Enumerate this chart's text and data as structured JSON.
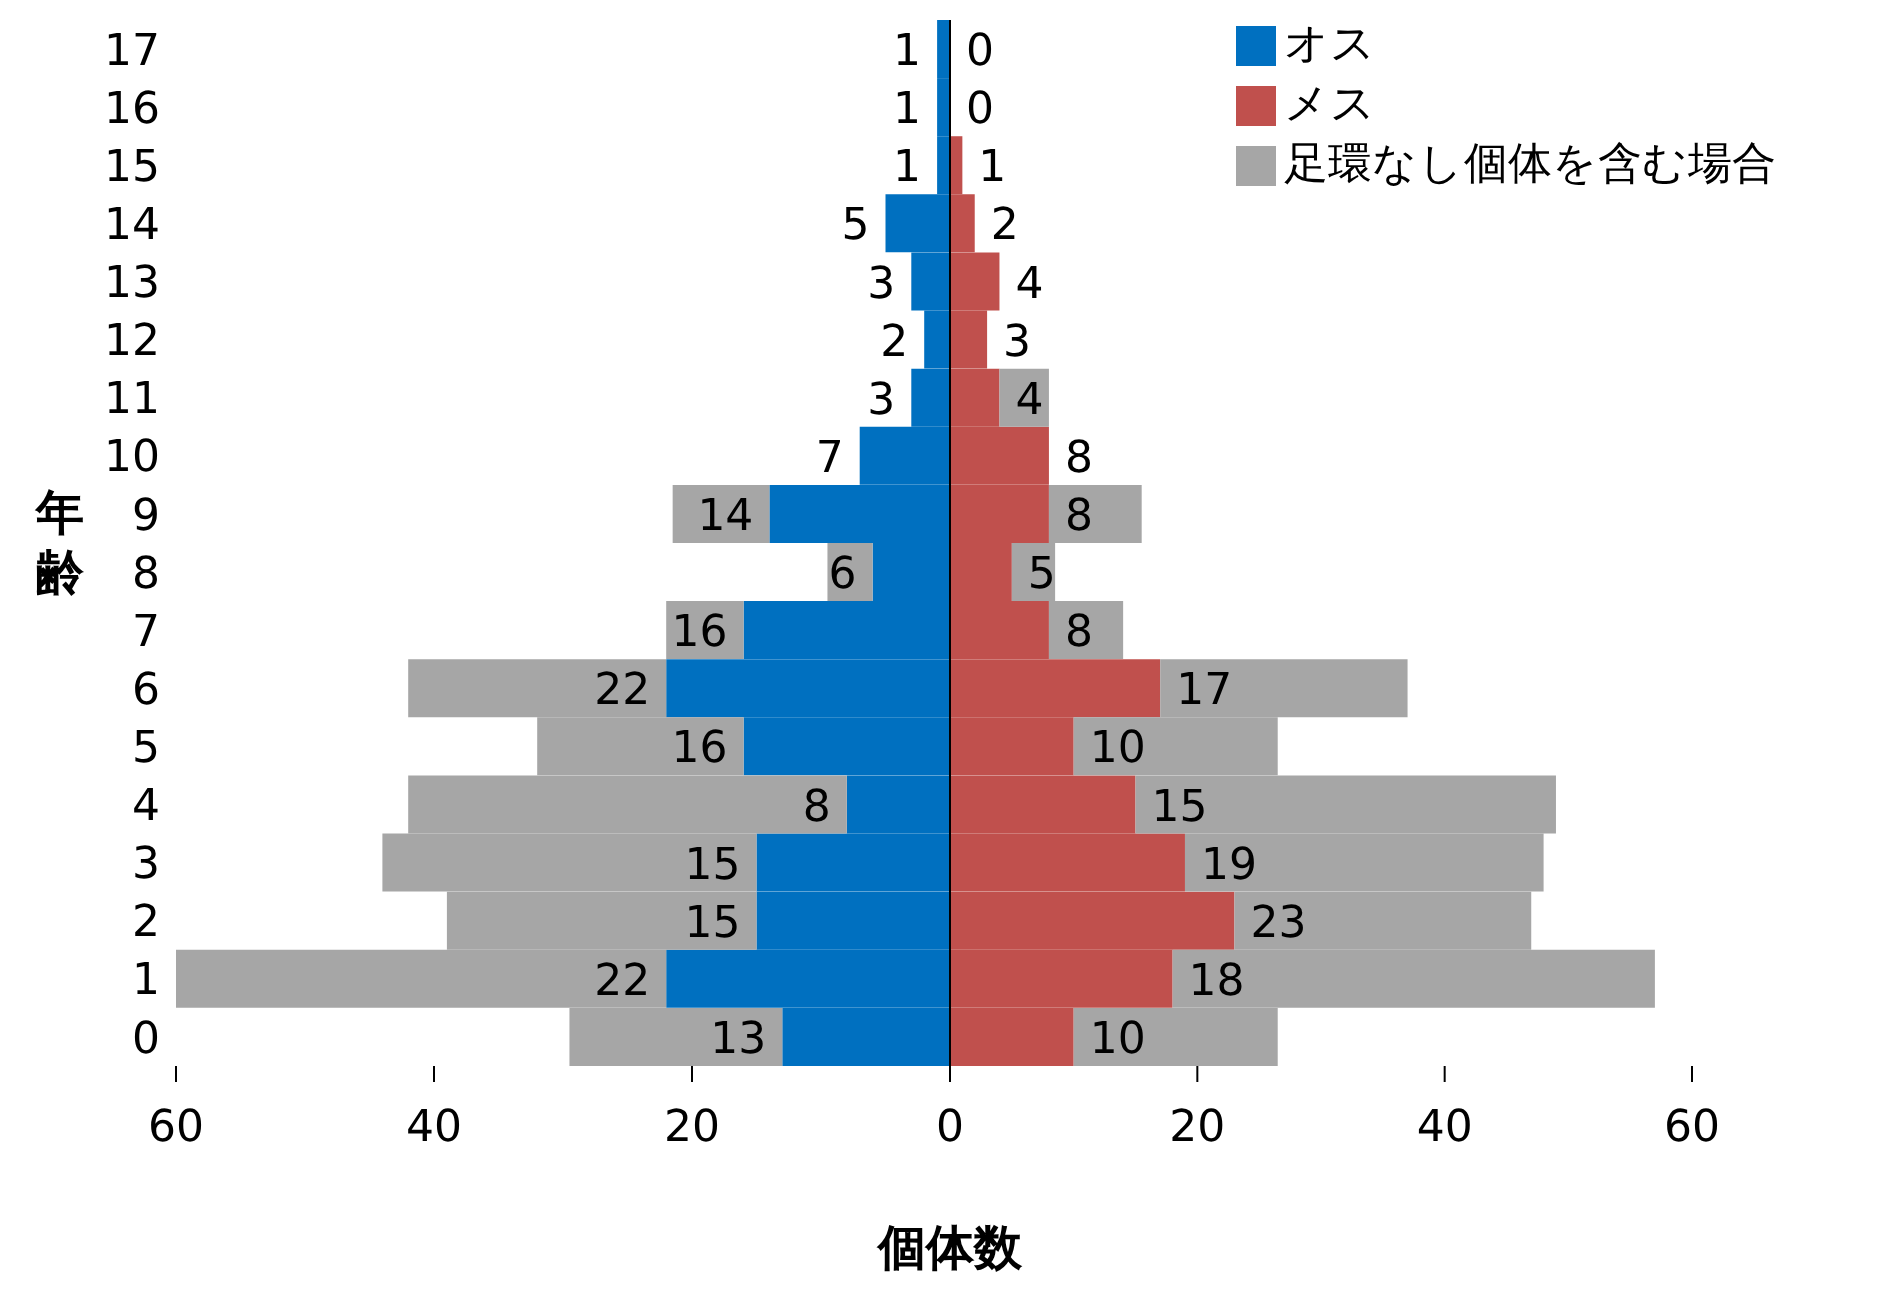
{
  "chart_data": [
    {
      "type": "bar",
      "orientation": "horizontal",
      "stacked": true,
      "ylabel": "年齢",
      "legend": "top right",
      "categories": [
        "17",
        "16",
        "15",
        "14",
        "13",
        "12",
        "11",
        "10",
        "9",
        "8",
        "7",
        "6",
        "5",
        "4",
        "3",
        "2",
        "1",
        "0"
      ],
      "series": [
        {
          "name": "オス",
          "color": "#0070c0",
          "values": [
            1,
            1,
            1,
            5,
            3,
            2,
            3,
            7,
            14,
            6,
            16,
            22,
            16,
            8,
            15,
            15,
            22,
            13
          ],
          "value_labels": [
            "1",
            "1",
            "1",
            "5",
            "3",
            "2",
            "3",
            "7",
            "14",
            "6",
            "16",
            "22",
            "16",
            "8",
            "15",
            "15",
            "22",
            "13"
          ]
        },
        {
          "color": "#a6a6a6",
          "values": [
            0,
            0,
            0,
            0,
            0,
            0,
            0,
            0,
            7.5,
            3.5,
            6,
            20,
            16,
            34,
            29,
            24,
            38,
            16.5
          ]
        }
      ],
      "xlim": [
        60,
        0
      ],
      "xticks": [
        60,
        40,
        20,
        {
          "value": 0,
          "label": null
        }
      ]
    },
    {
      "type": "bar",
      "orientation": "horizontal",
      "stacked": true,
      "xlabel": "個体数",
      "legend": "top right",
      "tick_labels": "x",
      "categories": [
        "17",
        "16",
        "15",
        "14",
        "13",
        "12",
        "11",
        "10",
        "9",
        "8",
        "7",
        "6",
        "5",
        "4",
        "3",
        "2",
        "1",
        "0"
      ],
      "series": [
        {
          "name": "メス",
          "color": "#c0504d",
          "values": [
            0,
            0,
            1,
            2,
            4,
            3,
            4,
            8,
            8,
            5,
            8,
            17,
            10,
            15,
            19,
            23,
            18,
            10
          ],
          "value_labels": [
            "0",
            "0",
            "1",
            "2",
            "4",
            "3",
            "4",
            "8",
            "8",
            "5",
            "8",
            "17",
            "10",
            "15",
            "19",
            "23",
            "18",
            "10"
          ]
        },
        {
          "name": "足環なし個体を含む場合",
          "color": "#a6a6a6",
          "values": [
            0,
            0,
            0,
            0,
            0,
            0,
            4,
            0,
            7.5,
            3.5,
            6,
            20,
            16.5,
            34,
            29,
            24,
            39,
            16.5
          ]
        }
      ],
      "xlim": [
        0,
        60
      ],
      "xticks": [
        0,
        20,
        40,
        60
      ]
    }
  ]
}
